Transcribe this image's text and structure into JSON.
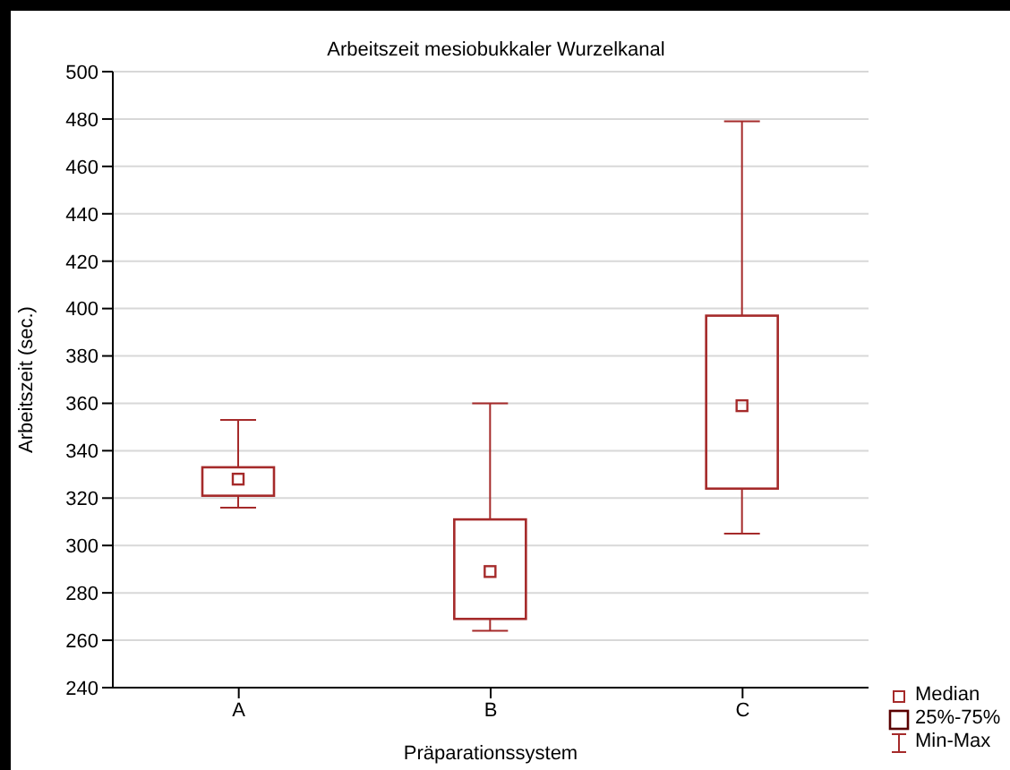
{
  "chart_data": {
    "type": "box",
    "title": "Arbeitszeit mesiobukkaler Wurzelkanal",
    "xlabel": "Präparationssystem",
    "ylabel": "Arbeitszeit (sec.)",
    "categories": [
      "A",
      "B",
      "C"
    ],
    "series": [
      {
        "color": "#a52a2a",
        "boxes": [
          {
            "low": 316,
            "q1": 321,
            "median": 328,
            "q3": 333,
            "high": 353
          },
          {
            "low": 264,
            "q1": 269,
            "median": 289,
            "q3": 311,
            "high": 360
          },
          {
            "low": 305,
            "q1": 324,
            "median": 359,
            "q3": 397,
            "high": 479
          }
        ]
      }
    ],
    "ylim": [
      240,
      500
    ],
    "yticks": [
      240,
      260,
      280,
      300,
      320,
      340,
      360,
      380,
      400,
      420,
      440,
      460,
      480,
      500
    ],
    "grid": "y",
    "annotations": [
      "Median",
      "25%-75%",
      "Min-Max"
    ]
  }
}
